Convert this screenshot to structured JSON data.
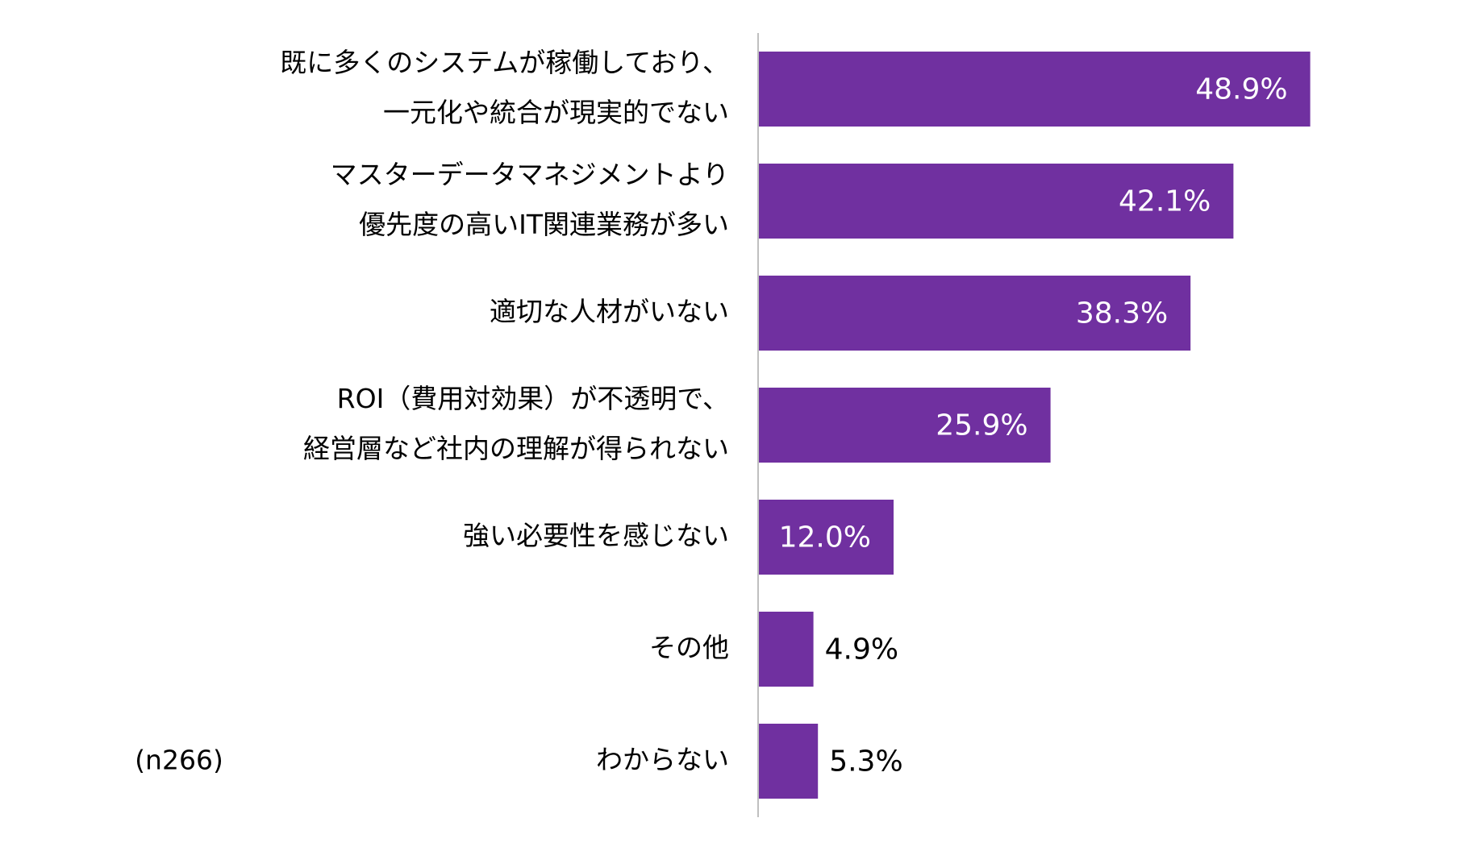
{
  "chart_data": {
    "type": "bar",
    "orientation": "horizontal",
    "color": "#7030a0",
    "categories": [
      [
        "既に多くのシステムが稼働しており、",
        "一元化や統合が現実的でない"
      ],
      [
        "マスターデータマネジメントより",
        "優先度の高いIT関連業務が多い"
      ],
      [
        "適切な人材がいない"
      ],
      [
        "ROI（費用対効果）が不透明で、",
        "経営層など社内の理解が得られない"
      ],
      [
        "強い必要性を感じない"
      ],
      [
        "その他"
      ],
      [
        "わからない"
      ]
    ],
    "values": [
      48.9,
      42.1,
      38.3,
      25.9,
      12.0,
      4.9,
      5.3
    ],
    "value_labels": [
      "48.9%",
      "42.1%",
      "38.3%",
      "25.9%",
      "12.0%",
      "4.9%",
      "5.3%"
    ],
    "annotation": "(n266)"
  }
}
